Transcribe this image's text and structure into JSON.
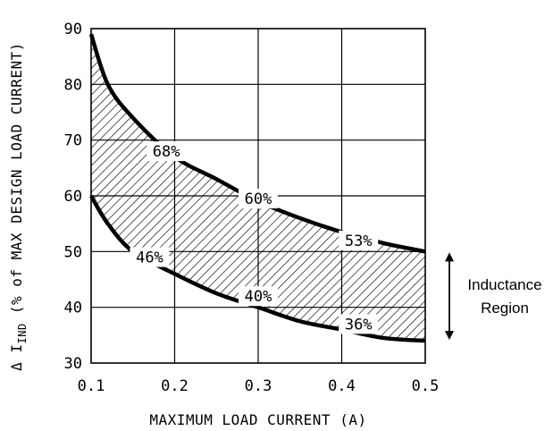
{
  "chart_data": {
    "type": "area",
    "xlabel": "MAXIMUM LOAD CURRENT (A)",
    "ylabel": {
      "prefix": "Δ I",
      "subscript": "IND",
      "suffix": " (% of MAX DESIGN LOAD CURRENT)"
    },
    "xlim": [
      0.1,
      0.5
    ],
    "ylim": [
      30,
      90
    ],
    "x_ticks": [
      0.1,
      0.2,
      0.3,
      0.4,
      0.5
    ],
    "x_tick_labels": [
      "0.1",
      "0.2",
      "0.3",
      "0.4",
      "0.5"
    ],
    "y_ticks": [
      30,
      40,
      50,
      60,
      70,
      80,
      90
    ],
    "y_tick_labels": [
      "30",
      "40",
      "50",
      "60",
      "70",
      "80",
      "90"
    ],
    "grid": true,
    "series": [
      {
        "role": "upper",
        "x": [
          0.1,
          0.12,
          0.15,
          0.2,
          0.25,
          0.3,
          0.35,
          0.4,
          0.45,
          0.5
        ],
        "values": [
          89,
          80,
          74,
          67,
          63,
          59,
          56,
          53.5,
          51.5,
          50
        ]
      },
      {
        "role": "lower",
        "x": [
          0.1,
          0.12,
          0.15,
          0.2,
          0.25,
          0.3,
          0.35,
          0.4,
          0.45,
          0.5
        ],
        "values": [
          60,
          55,
          50,
          46,
          42.5,
          40,
          37.5,
          36,
          34.5,
          34
        ]
      }
    ],
    "region": "hatched",
    "annotations": [
      {
        "text": "68%",
        "x": 0.19,
        "y": 68
      },
      {
        "text": "60%",
        "x": 0.3,
        "y": 59.5
      },
      {
        "text": "53%",
        "x": 0.42,
        "y": 52
      },
      {
        "text": "46%",
        "x": 0.17,
        "y": 49
      },
      {
        "text": "40%",
        "x": 0.3,
        "y": 42
      },
      {
        "text": "36%",
        "x": 0.42,
        "y": 37
      }
    ],
    "side_note": {
      "lines": [
        "Inductance",
        "Region"
      ],
      "range": [
        34,
        50
      ]
    }
  }
}
